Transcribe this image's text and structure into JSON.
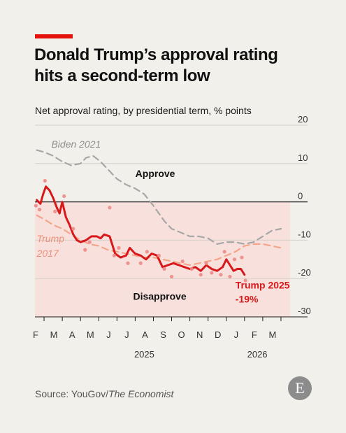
{
  "header": {
    "title_line1": "Donald Trump’s approval rating",
    "title_line2": "hits a second-term low",
    "subtitle": "Net approval rating, by presidential term, % points"
  },
  "footer": {
    "source_label": "Source: YouGov/",
    "source_publication": "The Economist",
    "logo_letter": "E"
  },
  "colors": {
    "trump2025": "#d7191c",
    "trump2017": "#f4a58a",
    "biden2021": "#a7a7a7",
    "disapprove_band": "#f8e1dd",
    "background": "#f2f0eb",
    "brand_red": "#e3120b"
  },
  "chart_data": {
    "type": "line",
    "ylim": [
      -30,
      20
    ],
    "y_ticks": [
      20,
      10,
      0,
      -10,
      -20,
      -30
    ],
    "y_tick_labels": [
      "20",
      "10",
      "0",
      "-10",
      "-20",
      "-30"
    ],
    "x_range": [
      0.5,
      14.5
    ],
    "x_ticks": [
      {
        "x": 1,
        "label": "F"
      },
      {
        "x": 2,
        "label": "M"
      },
      {
        "x": 3,
        "label": "A"
      },
      {
        "x": 4,
        "label": "M"
      },
      {
        "x": 5,
        "label": "J"
      },
      {
        "x": 6,
        "label": "J"
      },
      {
        "x": 7,
        "label": "A"
      },
      {
        "x": 8,
        "label": "S"
      },
      {
        "x": 9,
        "label": "O"
      },
      {
        "x": 10,
        "label": "N"
      },
      {
        "x": 11,
        "label": "D"
      },
      {
        "x": 12,
        "label": "J"
      },
      {
        "x": 13,
        "label": "F"
      },
      {
        "x": 14,
        "label": "M"
      }
    ],
    "year_labels": [
      {
        "x": 6.5,
        "label": "2025"
      },
      {
        "x": 12.7,
        "label": "2026"
      }
    ],
    "region_labels": {
      "approve": "Approve",
      "disapprove": "Disapprove"
    },
    "series": [
      {
        "name": "Biden 2021",
        "style": "dashed",
        "x": [
          0.6,
          1.0,
          1.5,
          2.0,
          2.5,
          3.0,
          3.3,
          3.7,
          4.1,
          4.6,
          5.0,
          5.5,
          6.0,
          6.5,
          7.0,
          7.3,
          7.6,
          8.0,
          8.5,
          9.0,
          9.5,
          10.0,
          10.5,
          11.0,
          11.5,
          12.0,
          12.5,
          13.0,
          13.5,
          14.0
        ],
        "y": [
          13.5,
          13,
          12,
          10.5,
          9.5,
          10,
          11.5,
          12,
          10.5,
          8,
          6,
          4.5,
          3.5,
          2,
          -1,
          -3,
          -5,
          -7,
          -8,
          -9,
          -9,
          -9.5,
          -11,
          -10.5,
          -10.5,
          -11,
          -10.5,
          -9,
          -7.5,
          -7
        ]
      },
      {
        "name": "Trump 2017",
        "style": "dashed",
        "x": [
          0.6,
          1.0,
          1.5,
          2.0,
          2.5,
          3.0,
          3.5,
          4.0,
          4.5,
          5.0,
          5.5,
          6.0,
          6.5,
          7.0,
          7.5,
          8.0,
          8.5,
          9.0,
          9.5,
          10.0,
          10.5,
          11.0,
          11.5,
          12.0,
          12.5,
          13.0,
          13.5,
          14.0
        ],
        "y": [
          -3.5,
          -4.5,
          -6,
          -7,
          -8.5,
          -10,
          -11,
          -11.5,
          -12.5,
          -13,
          -13.5,
          -14,
          -14.5,
          -14.5,
          -15,
          -15.5,
          -16,
          -16.5,
          -16,
          -15.5,
          -15,
          -14,
          -13,
          -11.5,
          -11,
          -11,
          -11.5,
          -12
        ]
      },
      {
        "name": "Trump 2025",
        "style": "solid",
        "x": [
          0.6,
          0.8,
          0.95,
          1.1,
          1.3,
          1.5,
          1.7,
          1.85,
          2.0,
          2.2,
          2.4,
          2.6,
          2.8,
          3.0,
          3.3,
          3.6,
          3.9,
          4.1,
          4.3,
          4.6,
          4.9,
          5.2,
          5.5,
          5.7,
          6.0,
          6.3,
          6.6,
          6.9,
          7.2,
          7.5,
          7.8,
          8.1,
          8.4,
          8.7,
          9.0,
          9.3,
          9.6,
          9.9,
          10.2,
          10.5,
          10.8,
          11.0,
          11.2,
          11.4,
          11.6,
          11.8,
          12.0
        ],
        "y": [
          0.5,
          -0.5,
          2,
          4,
          3,
          1,
          -1.5,
          -3,
          0,
          -4,
          -6,
          -8.5,
          -10,
          -10.5,
          -10,
          -9,
          -9,
          -9.5,
          -8.5,
          -9,
          -13.5,
          -14.5,
          -14,
          -12,
          -13.5,
          -14,
          -15,
          -13.5,
          -14,
          -17,
          -16.5,
          -16,
          -16.5,
          -17,
          -17.5,
          -17,
          -18,
          -16.5,
          -17.5,
          -18,
          -17,
          -15,
          -16.5,
          -18,
          -17.5,
          -17.5,
          -19
        ]
      }
    ],
    "scatter": {
      "name": "Trump 2025 polls",
      "x": [
        0.55,
        0.75,
        1.05,
        1.6,
        2.1,
        2.6,
        3.25,
        3.5,
        4.6,
        4.85,
        5.1,
        5.6,
        6.3,
        6.65,
        7.3,
        7.6,
        8.0,
        8.6,
        9.1,
        9.6,
        9.9,
        10.2,
        10.7,
        10.9,
        11.2,
        11.45,
        11.85,
        12.05
      ],
      "y": [
        -1,
        -2,
        5.5,
        -2.5,
        1.5,
        -7,
        -12.5,
        -10.5,
        -1.5,
        -14,
        -12,
        -16,
        -16,
        -13,
        -14,
        -17.5,
        -19.5,
        -15.5,
        -17.5,
        -19,
        -16,
        -18.5,
        -19,
        -13,
        -19.5,
        -15,
        -14.5,
        -20.5
      ]
    },
    "annotations": [
      {
        "text": "Biden 2021",
        "series": "Biden 2021"
      },
      {
        "text": "Trump",
        "series": "Trump 2017"
      },
      {
        "text": "2017",
        "series": "Trump 2017"
      },
      {
        "text": "Trump 2025",
        "series": "Trump 2025"
      },
      {
        "text": "-19%",
        "series": "Trump 2025"
      }
    ]
  }
}
